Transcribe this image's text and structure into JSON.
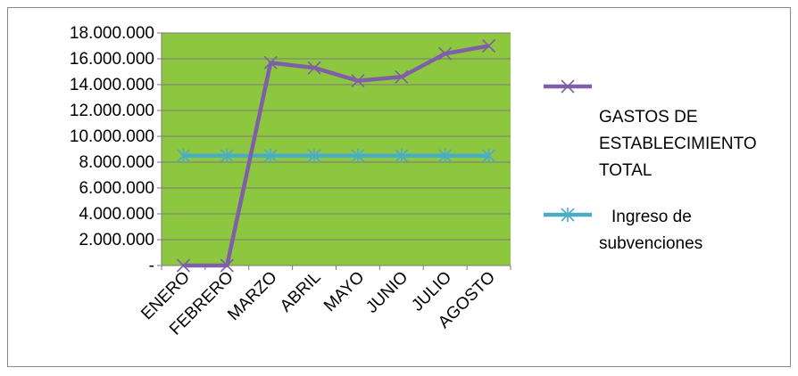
{
  "chart_data": {
    "type": "line",
    "categories": [
      "ENERO",
      "FEBRERO",
      "MARZO",
      "ABRIL",
      "MAYO",
      "JUNIO",
      "JULIO",
      "AGOSTO"
    ],
    "y_tick_labels": [
      "-",
      "2.000.000",
      "4.000.000",
      "6.000.000",
      "8.000.000",
      "10.000.000",
      "12.000.000",
      "14.000.000",
      "16.000.000",
      "18.000.000"
    ],
    "ylim": [
      0,
      18000000
    ],
    "grid": true,
    "plot_background": "#8dc63f",
    "legend_position": "right",
    "series": [
      {
        "name": "GASTOS DE ESTABLECIMIENTO TOTAL",
        "name_lines": [
          "GASTOS DE",
          "ESTABLECIMIENTO",
          "TOTAL"
        ],
        "color": "#7f5fa8",
        "marker": "x",
        "values": [
          0,
          0,
          15700000,
          15300000,
          14300000,
          14600000,
          16400000,
          17000000
        ]
      },
      {
        "name": "Ingreso de subvenciones",
        "name_lines": [
          "Ingreso de",
          "subvenciones"
        ],
        "color": "#4bacc6",
        "marker": "asterisk",
        "values": [
          8500000,
          8500000,
          8500000,
          8500000,
          8500000,
          8500000,
          8500000,
          8500000
        ]
      }
    ]
  }
}
